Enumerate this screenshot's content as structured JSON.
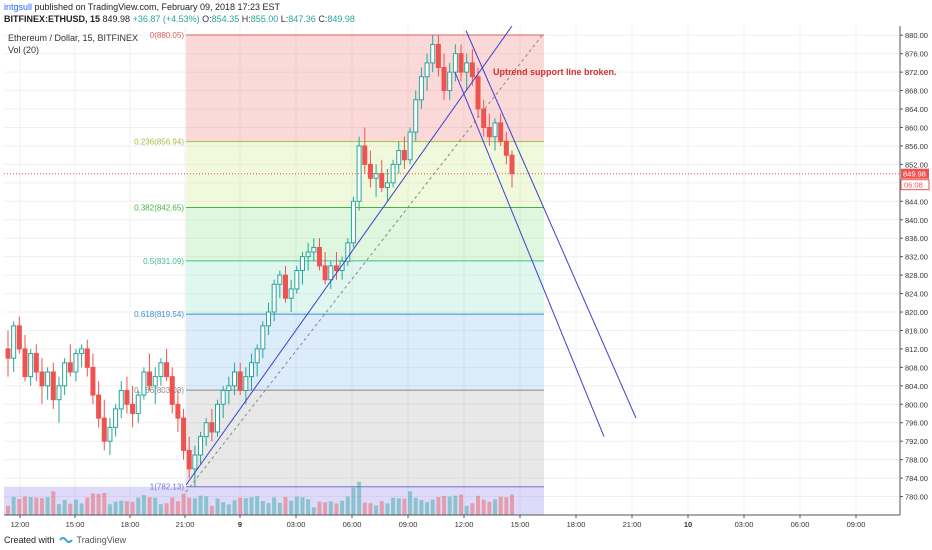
{
  "header": {
    "author": "intgsull",
    "published": "published on TradingView.com, February 09, 2018 17:23 EST",
    "symbol": "BITFINEX:ETHUSD, 15",
    "last": "849.98",
    "change": "+36.87 (+4.53%)",
    "open_label": "O:",
    "open": "854.35",
    "high_label": "H:",
    "high": "855.00",
    "low_label": "L:",
    "low": "847.36",
    "close_label": "C:",
    "close": "849.98"
  },
  "legend": {
    "title": "Ethereum / Dollar, 15, BITFINEX",
    "volume": "Vol (20)"
  },
  "annotation": "Uptrend support line broken.",
  "footer": {
    "created": "Created with",
    "brand": "TradingView"
  },
  "colors": {
    "up": "#26a69a",
    "down": "#ef5350",
    "trendline": "#3f3fd0",
    "price_line": "#ef5350"
  },
  "chart_data": {
    "type": "candlestick",
    "ylim": [
      776,
      882
    ],
    "y_ticks": [
      780,
      784,
      788,
      792,
      796,
      800,
      804,
      808,
      812,
      816,
      820,
      824,
      828,
      832,
      836,
      840,
      844,
      848,
      852,
      856,
      860,
      864,
      868,
      872,
      876,
      880
    ],
    "x_tick_labels": [
      "12:00",
      "15:00",
      "18:00",
      "21:00",
      "9",
      "03:00",
      "06:00",
      "09:00",
      "12:00",
      "15:00",
      "18:00",
      "21:00",
      "10",
      "03:00",
      "06:00",
      "09:00"
    ],
    "last_price_tag": "849.98",
    "countdown_tag": "06:08",
    "fibonacci": [
      {
        "level": "1",
        "price": 782.13,
        "label": "1(782.13)"
      },
      {
        "level": "0.786",
        "price": 803.08,
        "label": "0.786(803.08)"
      },
      {
        "level": "0.618",
        "price": 819.54,
        "label": "0.618(819.54)"
      },
      {
        "level": "0.5",
        "price": 831.09,
        "label": "0.5(831.09)"
      },
      {
        "level": "0.382",
        "price": 842.65,
        "label": "0.382(842.65)"
      },
      {
        "level": "0.236",
        "price": 856.94,
        "label": "0.236(856.94)"
      },
      {
        "level": "0",
        "price": 880.05,
        "label": "0(880.05)"
      }
    ],
    "candles": [
      [
        812,
        816,
        806,
        810
      ],
      [
        810,
        818,
        807,
        817
      ],
      [
        817,
        819,
        811,
        812
      ],
      [
        812,
        815,
        805,
        806
      ],
      [
        806,
        812,
        804,
        811
      ],
      [
        811,
        813,
        805,
        807
      ],
      [
        807,
        810,
        800,
        804
      ],
      [
        804,
        808,
        801,
        807
      ],
      [
        807,
        809,
        799,
        801
      ],
      [
        801,
        806,
        796,
        804
      ],
      [
        804,
        810,
        802,
        809
      ],
      [
        809,
        813,
        806,
        807
      ],
      [
        807,
        812,
        805,
        811
      ],
      [
        811,
        813,
        808,
        812
      ],
      [
        812,
        814,
        806,
        808
      ],
      [
        808,
        811,
        800,
        802
      ],
      [
        802,
        805,
        795,
        797
      ],
      [
        797,
        801,
        790,
        792
      ],
      [
        792,
        797,
        789,
        795
      ],
      [
        795,
        800,
        793,
        799
      ],
      [
        799,
        805,
        797,
        803
      ],
      [
        803,
        806,
        798,
        800
      ],
      [
        800,
        804,
        795,
        798
      ],
      [
        798,
        803,
        796,
        802
      ],
      [
        802,
        808,
        801,
        807
      ],
      [
        807,
        811,
        803,
        804
      ],
      [
        804,
        808,
        800,
        806
      ],
      [
        806,
        810,
        804,
        809
      ],
      [
        809,
        812,
        805,
        806
      ],
      [
        806,
        808,
        798,
        800
      ],
      [
        800,
        803,
        794,
        797
      ],
      [
        797,
        799,
        788,
        790
      ],
      [
        790,
        793,
        784,
        786
      ],
      [
        786,
        791,
        782,
        789
      ],
      [
        789,
        794,
        787,
        793
      ],
      [
        793,
        797,
        791,
        796
      ],
      [
        796,
        799,
        792,
        794
      ],
      [
        794,
        801,
        793,
        800
      ],
      [
        800,
        804,
        797,
        803
      ],
      [
        803,
        806,
        800,
        804
      ],
      [
        804,
        809,
        802,
        807
      ],
      [
        807,
        809,
        802,
        803
      ],
      [
        803,
        808,
        800,
        806
      ],
      [
        806,
        811,
        803,
        809
      ],
      [
        809,
        813,
        806,
        812
      ],
      [
        812,
        818,
        810,
        817
      ],
      [
        817,
        822,
        815,
        820
      ],
      [
        820,
        827,
        818,
        826
      ],
      [
        826,
        829,
        823,
        828
      ],
      [
        828,
        830,
        822,
        823
      ],
      [
        823,
        827,
        820,
        825
      ],
      [
        825,
        830,
        824,
        829
      ],
      [
        829,
        833,
        826,
        832
      ],
      [
        832,
        835,
        829,
        833
      ],
      [
        833,
        836,
        831,
        834
      ],
      [
        834,
        836,
        829,
        830
      ],
      [
        830,
        833,
        826,
        827
      ],
      [
        827,
        831,
        825,
        830
      ],
      [
        830,
        833,
        827,
        829
      ],
      [
        829,
        832,
        827,
        831
      ],
      [
        831,
        836,
        830,
        835
      ],
      [
        835,
        845,
        834,
        844
      ],
      [
        844,
        858,
        842,
        856
      ],
      [
        856,
        860,
        850,
        852
      ],
      [
        852,
        855,
        847,
        849
      ],
      [
        849,
        852,
        845,
        850
      ],
      [
        850,
        853,
        846,
        847
      ],
      [
        847,
        851,
        844,
        848
      ],
      [
        848,
        853,
        847,
        852
      ],
      [
        852,
        857,
        850,
        855
      ],
      [
        855,
        858,
        851,
        853
      ],
      [
        853,
        860,
        852,
        859
      ],
      [
        859,
        868,
        857,
        866
      ],
      [
        866,
        873,
        864,
        871
      ],
      [
        871,
        876,
        868,
        874
      ],
      [
        874,
        880,
        872,
        878
      ],
      [
        878,
        880,
        871,
        873
      ],
      [
        873,
        876,
        866,
        868
      ],
      [
        868,
        874,
        866,
        872
      ],
      [
        872,
        878,
        870,
        876
      ],
      [
        876,
        878,
        870,
        872
      ],
      [
        872,
        876,
        868,
        874
      ],
      [
        874,
        877,
        869,
        871
      ],
      [
        871,
        873,
        862,
        864
      ],
      [
        864,
        866,
        858,
        860
      ],
      [
        860,
        863,
        856,
        858
      ],
      [
        858,
        862,
        855,
        861
      ],
      [
        861,
        863,
        856,
        857
      ],
      [
        857,
        859,
        852,
        854
      ],
      [
        854,
        855,
        847,
        850
      ]
    ],
    "volume_note": "volume histogram below candles"
  }
}
